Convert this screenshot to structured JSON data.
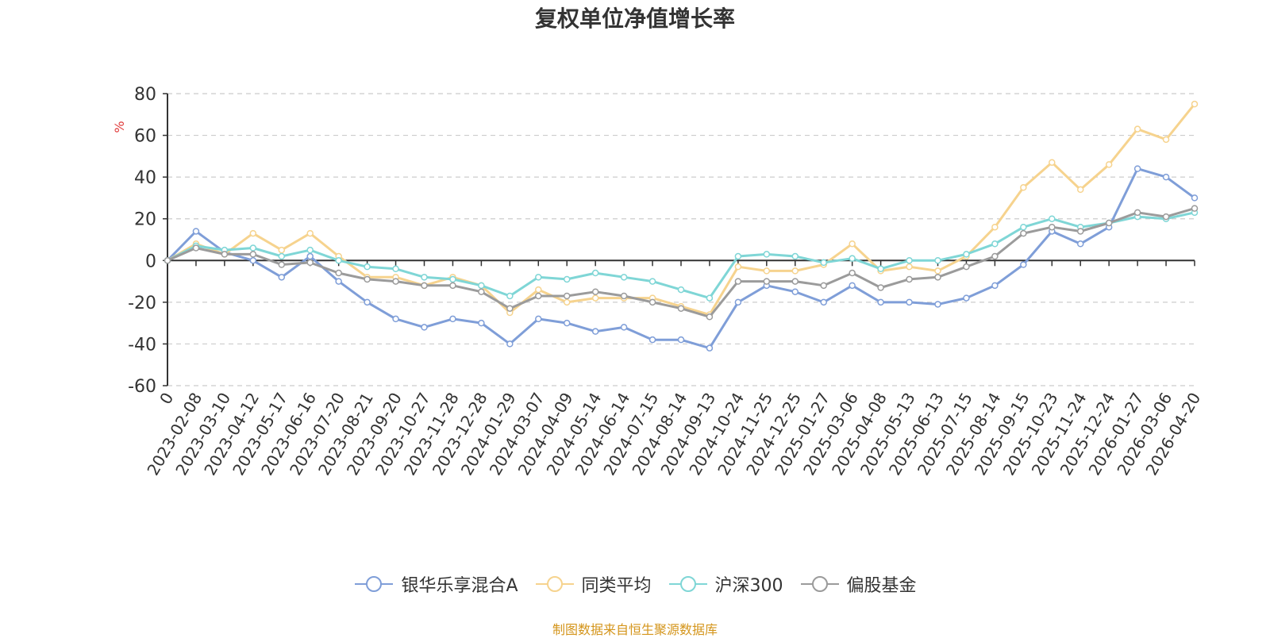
{
  "title": "复权单位净值增长率",
  "source": "制图数据来自恒生聚源数据库",
  "chart_data": {
    "type": "line",
    "title": "复权单位净值增长率",
    "ylabel": "%",
    "ylim": [
      -60,
      80
    ],
    "yticks": [
      80,
      60,
      40,
      20,
      0,
      -20,
      -40,
      -60
    ],
    "grid": true,
    "legend_position": "bottom",
    "x": [
      "0",
      "2023-02-08",
      "2023-03-10",
      "2023-04-12",
      "2023-05-17",
      "2023-06-16",
      "2023-07-20",
      "2023-08-21",
      "2023-09-20",
      "2023-10-27",
      "2023-11-28",
      "2023-12-28",
      "2024-01-29",
      "2024-03-07",
      "2024-04-09",
      "2024-05-14",
      "2024-06-14",
      "2024-07-15",
      "2024-08-14",
      "2024-09-13",
      "2024-10-24",
      "2024-11-25",
      "2024-12-25",
      "2025-01-27",
      "2025-03-06",
      "2025-04-08",
      "2025-05-13",
      "2025-06-13",
      "2025-07-15",
      "2025-08-14",
      "2025-09-15",
      "2025-10-23",
      "2025-11-24",
      "2025-12-24",
      "2026-01-27",
      "2026-03-06",
      "2026-04-20"
    ],
    "series": [
      {
        "name": "银华乐享混合A",
        "color": "#7f9ed8",
        "values": [
          0,
          14,
          4,
          0,
          -8,
          2,
          -10,
          -20,
          -28,
          -32,
          -28,
          -30,
          -40,
          -28,
          -30,
          -34,
          -32,
          -38,
          -38,
          -42,
          -20,
          -12,
          -15,
          -20,
          -12,
          -20,
          -20,
          -21,
          -18,
          -12,
          -2,
          14,
          8,
          16,
          44,
          40,
          30
        ]
      },
      {
        "name": "同类平均",
        "color": "#f6d38e",
        "values": [
          0,
          8,
          3,
          13,
          5,
          13,
          2,
          -8,
          -8,
          -12,
          -8,
          -12,
          -25,
          -14,
          -20,
          -18,
          -18,
          -18,
          -22,
          -26,
          -3,
          -5,
          -5,
          -2,
          8,
          -5,
          -3,
          -5,
          2,
          16,
          35,
          47,
          34,
          46,
          63,
          58,
          75
        ]
      },
      {
        "name": "沪深300",
        "color": "#7fd6d6",
        "values": [
          0,
          7,
          5,
          6,
          2,
          5,
          0,
          -3,
          -4,
          -8,
          -9,
          -12,
          -17,
          -8,
          -9,
          -6,
          -8,
          -10,
          -14,
          -18,
          2,
          3,
          2,
          -1,
          1,
          -4,
          0,
          0,
          3,
          8,
          16,
          20,
          16,
          18,
          21,
          20,
          23
        ]
      },
      {
        "name": "偏股基金",
        "color": "#9b9b9b",
        "values": [
          0,
          6,
          3,
          3,
          -2,
          -1,
          -6,
          -9,
          -10,
          -12,
          -12,
          -15,
          -23,
          -17,
          -17,
          -15,
          -17,
          -20,
          -23,
          -27,
          -10,
          -10,
          -10,
          -12,
          -6,
          -13,
          -9,
          -8,
          -3,
          2,
          13,
          16,
          14,
          18,
          23,
          21,
          25
        ]
      }
    ]
  }
}
